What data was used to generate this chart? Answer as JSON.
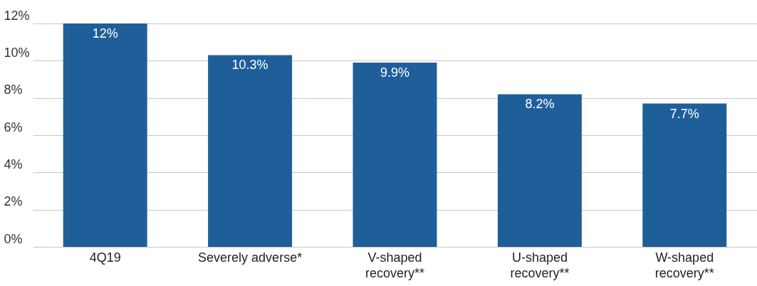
{
  "chart_data": {
    "type": "bar",
    "categories": [
      "4Q19",
      "Severely adverse*",
      "V-shaped recovery**",
      "U-shaped recovery**",
      "W-shaped recovery**"
    ],
    "values": [
      12,
      10.3,
      9.9,
      8.2,
      7.7
    ],
    "value_labels": [
      "12%",
      "10.3%",
      "9.9%",
      "8.2%",
      "7.7%"
    ],
    "color": "#1f5f99",
    "ylim": [
      0,
      12
    ],
    "yticks": [
      {
        "value": 0,
        "label": "0%"
      },
      {
        "value": 2,
        "label": "2%"
      },
      {
        "value": 4,
        "label": "4%"
      },
      {
        "value": 6,
        "label": "6%"
      },
      {
        "value": 8,
        "label": "8%"
      },
      {
        "value": 10,
        "label": "10%"
      },
      {
        "value": 12,
        "label": "12%"
      }
    ],
    "grid": "y"
  }
}
